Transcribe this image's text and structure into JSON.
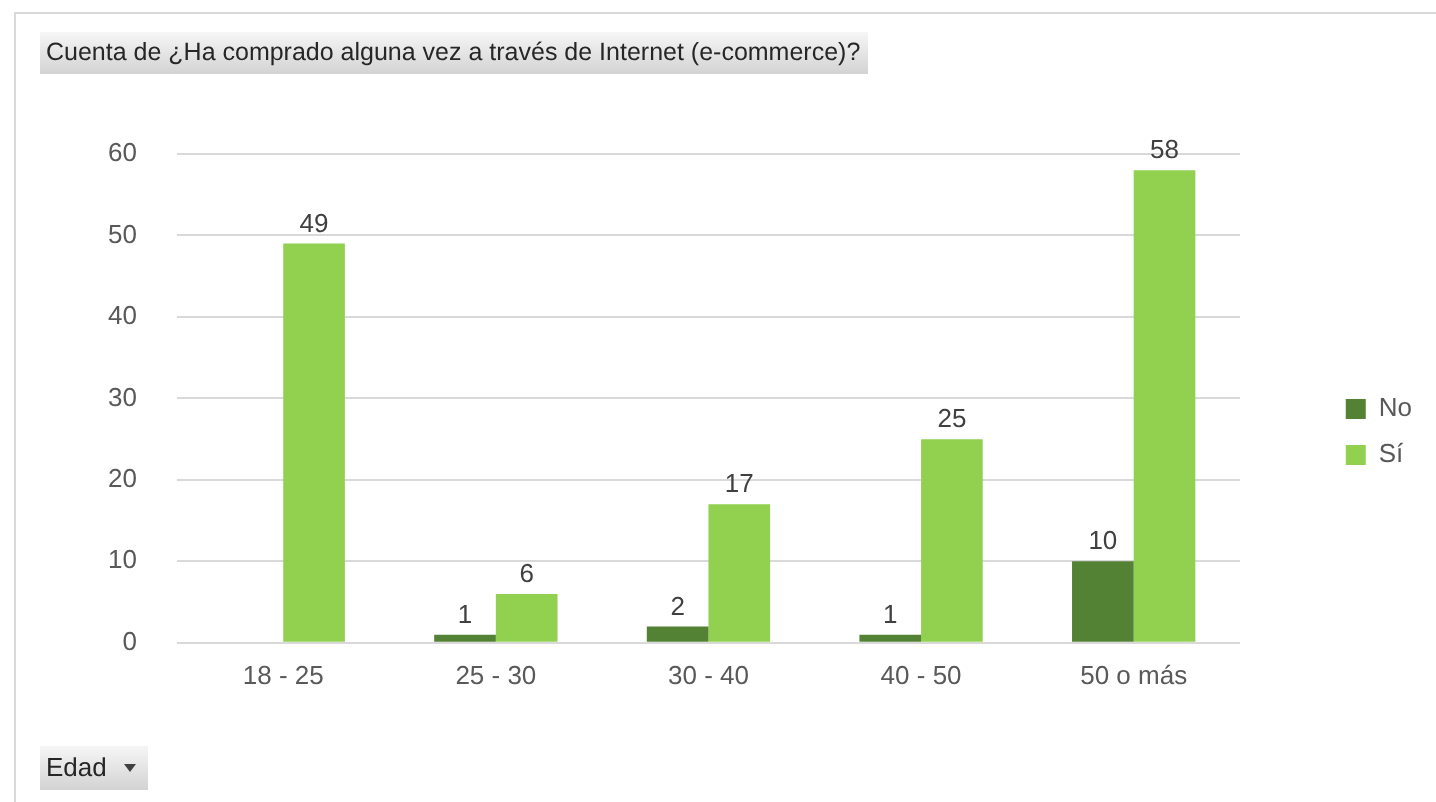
{
  "chart_data": {
    "type": "bar",
    "title": "Cuenta de ¿Ha comprado alguna vez a través de Internet (e-commerce)?",
    "xlabel": "Edad",
    "categories": [
      "18 - 25",
      "25 - 30",
      "30 - 40",
      "40 - 50",
      "50 o más"
    ],
    "series": [
      {
        "name": "No",
        "color": "#548235",
        "values": [
          null,
          1,
          2,
          1,
          10
        ]
      },
      {
        "name": "Sí",
        "color": "#92d050",
        "values": [
          49,
          6,
          17,
          25,
          58
        ]
      }
    ],
    "ylim": [
      0,
      60
    ],
    "yticks": [
      0,
      10,
      20,
      30,
      40,
      50,
      60
    ],
    "grid": "y",
    "legend": "right",
    "data_labels": true
  }
}
